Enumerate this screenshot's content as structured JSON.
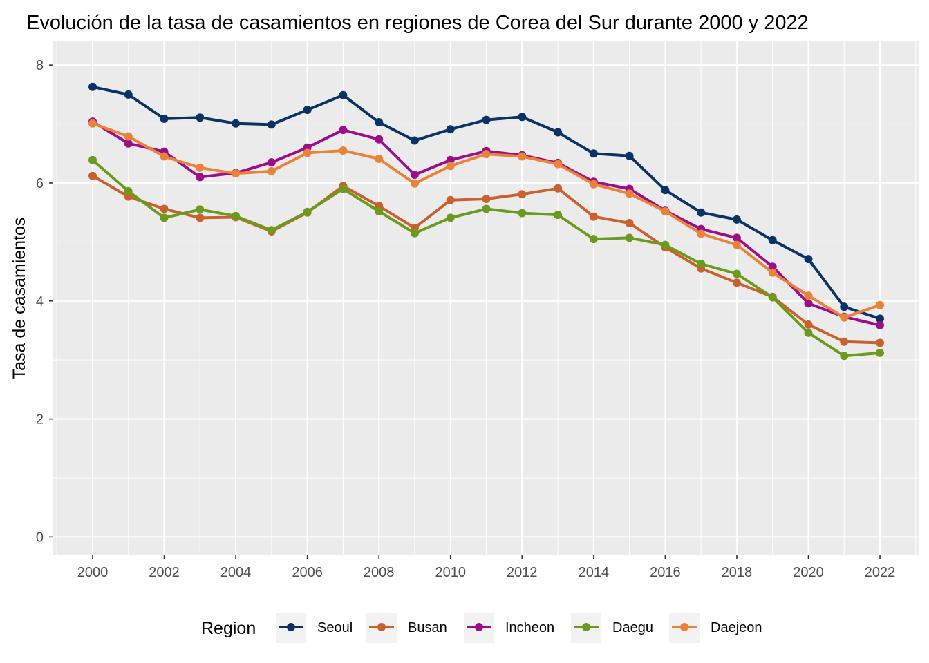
{
  "chart_data": {
    "type": "line",
    "title": "Evolución de la tasa de casamientos en regiones de Corea del Sur durante 2000 y 2022",
    "xlabel": "",
    "ylabel": "Tasa de casamientos",
    "xlim": [
      1998.9,
      2023.1
    ],
    "ylim": [
      -0.3,
      8.4
    ],
    "x_ticks": [
      2000,
      2002,
      2004,
      2006,
      2008,
      2010,
      2012,
      2014,
      2016,
      2018,
      2020,
      2022
    ],
    "x_tick_labels": [
      "2000",
      "2002",
      "2004",
      "2006",
      "2008",
      "2010",
      "2012",
      "2014",
      "2016",
      "2018",
      "2020",
      "2022"
    ],
    "y_ticks": [
      0,
      2,
      4,
      6,
      8
    ],
    "y_tick_labels": [
      "0",
      "2",
      "4",
      "6",
      "8"
    ],
    "grid": true,
    "legend": {
      "title": "Region",
      "position": "bottom"
    },
    "x": [
      2000,
      2001,
      2002,
      2003,
      2004,
      2005,
      2006,
      2007,
      2008,
      2009,
      2010,
      2011,
      2012,
      2013,
      2014,
      2015,
      2016,
      2017,
      2018,
      2019,
      2020,
      2021,
      2022
    ],
    "series": [
      {
        "name": "Seoul",
        "color": "#0b3264",
        "values": [
          7.63,
          7.5,
          7.09,
          7.11,
          7.01,
          6.99,
          7.24,
          7.49,
          7.03,
          6.72,
          6.91,
          7.07,
          7.12,
          6.86,
          6.5,
          6.46,
          5.88,
          5.5,
          5.38,
          5.03,
          4.71,
          3.9,
          3.7
        ]
      },
      {
        "name": "Busan",
        "color": "#c8612e",
        "values": [
          6.12,
          5.77,
          5.56,
          5.41,
          5.42,
          5.18,
          5.5,
          5.95,
          5.61,
          5.24,
          5.71,
          5.73,
          5.81,
          5.91,
          5.43,
          5.32,
          4.91,
          4.55,
          4.31,
          4.07,
          3.6,
          3.31,
          3.29
        ]
      },
      {
        "name": "Incheon",
        "color": "#9b0e8a",
        "values": [
          7.04,
          6.67,
          6.53,
          6.1,
          6.17,
          6.35,
          6.6,
          6.9,
          6.74,
          6.14,
          6.39,
          6.54,
          6.47,
          6.34,
          6.02,
          5.9,
          5.53,
          5.22,
          5.07,
          4.58,
          3.96,
          3.73,
          3.59
        ]
      },
      {
        "name": "Daegu",
        "color": "#6b9a1e",
        "values": [
          6.39,
          5.86,
          5.41,
          5.55,
          5.44,
          5.2,
          5.51,
          5.9,
          5.52,
          5.15,
          5.41,
          5.56,
          5.49,
          5.46,
          5.05,
          5.07,
          4.95,
          4.63,
          4.46,
          4.06,
          3.46,
          3.07,
          3.12
        ]
      },
      {
        "name": "Daejeon",
        "color": "#ea8237",
        "values": [
          7.01,
          6.79,
          6.45,
          6.26,
          6.16,
          6.2,
          6.51,
          6.55,
          6.41,
          5.99,
          6.29,
          6.49,
          6.45,
          6.32,
          5.98,
          5.82,
          5.52,
          5.14,
          4.95,
          4.48,
          4.09,
          3.72,
          3.93
        ]
      }
    ]
  }
}
